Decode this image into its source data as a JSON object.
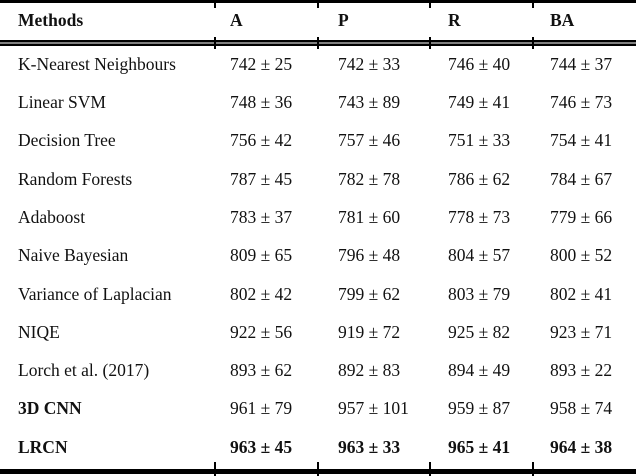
{
  "table": {
    "headers": {
      "method": "Methods",
      "a": "A",
      "p": "P",
      "r": "R",
      "ba": "BA"
    },
    "rows": [
      {
        "method": "K-Nearest Neighbours",
        "a": "742 ± 25",
        "p": "742 ± 33",
        "r": "746 ± 40",
        "ba": "744 ± 37"
      },
      {
        "method": "Linear SVM",
        "a": "748 ± 36",
        "p": "743 ± 89",
        "r": "749 ± 41",
        "ba": "746 ± 73"
      },
      {
        "method": "Decision Tree",
        "a": "756 ± 42",
        "p": "757 ± 46",
        "r": "751 ± 33",
        "ba": "754 ± 41"
      },
      {
        "method": "Random Forests",
        "a": "787 ± 45",
        "p": "782 ± 78",
        "r": "786 ± 62",
        "ba": "784 ± 67"
      },
      {
        "method": "Adaboost",
        "a": "783 ± 37",
        "p": "781 ± 60",
        "r": "778 ± 73",
        "ba": "779 ± 66"
      },
      {
        "method": "Naive Bayesian",
        "a": "809 ± 65",
        "p": "796 ± 48",
        "r": "804 ± 57",
        "ba": "800 ± 52"
      },
      {
        "method": "Variance of Laplacian",
        "a": "802 ± 42",
        "p": "799 ± 62",
        "r": "803 ± 79",
        "ba": "802 ± 41"
      },
      {
        "method": "NIQE",
        "a": "922 ± 56",
        "p": "919 ± 72",
        "r": "925 ± 82",
        "ba": "923 ± 71"
      },
      {
        "method": "Lorch et al. (2017)",
        "a": "893 ± 62",
        "p": "892 ± 83",
        "r": "894 ± 49",
        "ba": "893 ± 22"
      },
      {
        "method": "3D CNN",
        "a": "961 ± 79",
        "p": "957 ± 101",
        "r": "959 ± 87",
        "ba": "958 ± 74"
      },
      {
        "method": "LRCN",
        "a": "963 ± 45",
        "p": "963 ± 33",
        "r": "965 ± 41",
        "ba": "964 ± 38"
      }
    ]
  },
  "colors": {
    "text": "#111111",
    "rule": "#000000",
    "background": "#ffffff"
  }
}
